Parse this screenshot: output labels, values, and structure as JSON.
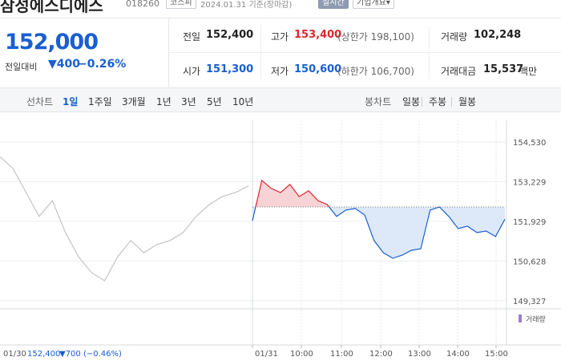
{
  "header": {
    "name": "삼성에스디에스",
    "code": "018260",
    "market": "코스피",
    "date": "2024.01.31",
    "basis": "기준(장마감)",
    "realtime": "실시간",
    "company": "기업개요"
  },
  "price": {
    "current": "152,000",
    "change_label": "전일대비",
    "change": "▼400",
    "change_pct": "−0.26%"
  },
  "stats": {
    "prev_label": "전일",
    "prev": "152,400",
    "high_label": "고가",
    "high": "153,400",
    "upper_limit": "(상한가 198,100)",
    "volume_label": "거래량",
    "volume": "102,248",
    "open_label": "시가",
    "open": "151,300",
    "low_label": "저가",
    "low": "150,600",
    "lower_limit": "(하한가 106,700)",
    "amount_label": "거래대금",
    "amount": "15,537",
    "amount_unit": "백만"
  },
  "tabs": {
    "line_label": "선차트",
    "periods": [
      "1일",
      "1주일",
      "3개월",
      "1년",
      "3년",
      "5년",
      "10년"
    ],
    "candle_label": "봉차트",
    "candles": [
      "일봉",
      "주봉",
      "월봉"
    ]
  },
  "chart_data": {
    "type": "line",
    "ylim": [
      149060,
      155240
    ],
    "yticks": [
      {
        "value": 149327,
        "label": "149,327"
      },
      {
        "value": 150628,
        "label": "150,628"
      },
      {
        "value": 151929,
        "label": "151,929"
      },
      {
        "value": 153229,
        "label": "153,229"
      },
      {
        "value": 154530,
        "label": "154,530"
      }
    ],
    "xticks": [
      "01/30",
      "01/31",
      "10:00",
      "11:00",
      "12:00",
      "13:00",
      "14:00",
      "15:00"
    ],
    "baseline": 152400,
    "series": [
      {
        "name": "01/30",
        "color": "#c4c4c4",
        "values": [
          154050,
          153660,
          152870,
          152090,
          152610,
          151560,
          150770,
          150250,
          149980,
          150770,
          151300,
          150900,
          151170,
          151300,
          151560,
          152090,
          152480,
          152740,
          152870,
          153090
        ]
      },
      {
        "name": "01/31",
        "up_color": "#e0242e",
        "down_color": "#1a5fd0",
        "values": [
          151950,
          153270,
          153010,
          152870,
          153140,
          152740,
          152930,
          152610,
          152480,
          152090,
          152300,
          152350,
          152140,
          151300,
          150900,
          150720,
          150820,
          150980,
          151030,
          152300,
          152400,
          152090,
          151690,
          151770,
          151560,
          151610,
          151430,
          152000
        ]
      }
    ],
    "volume_label": "거래량",
    "footer": {
      "date": "01/30",
      "price": "152,400",
      "change": "▼700 (−0.46%)"
    }
  }
}
